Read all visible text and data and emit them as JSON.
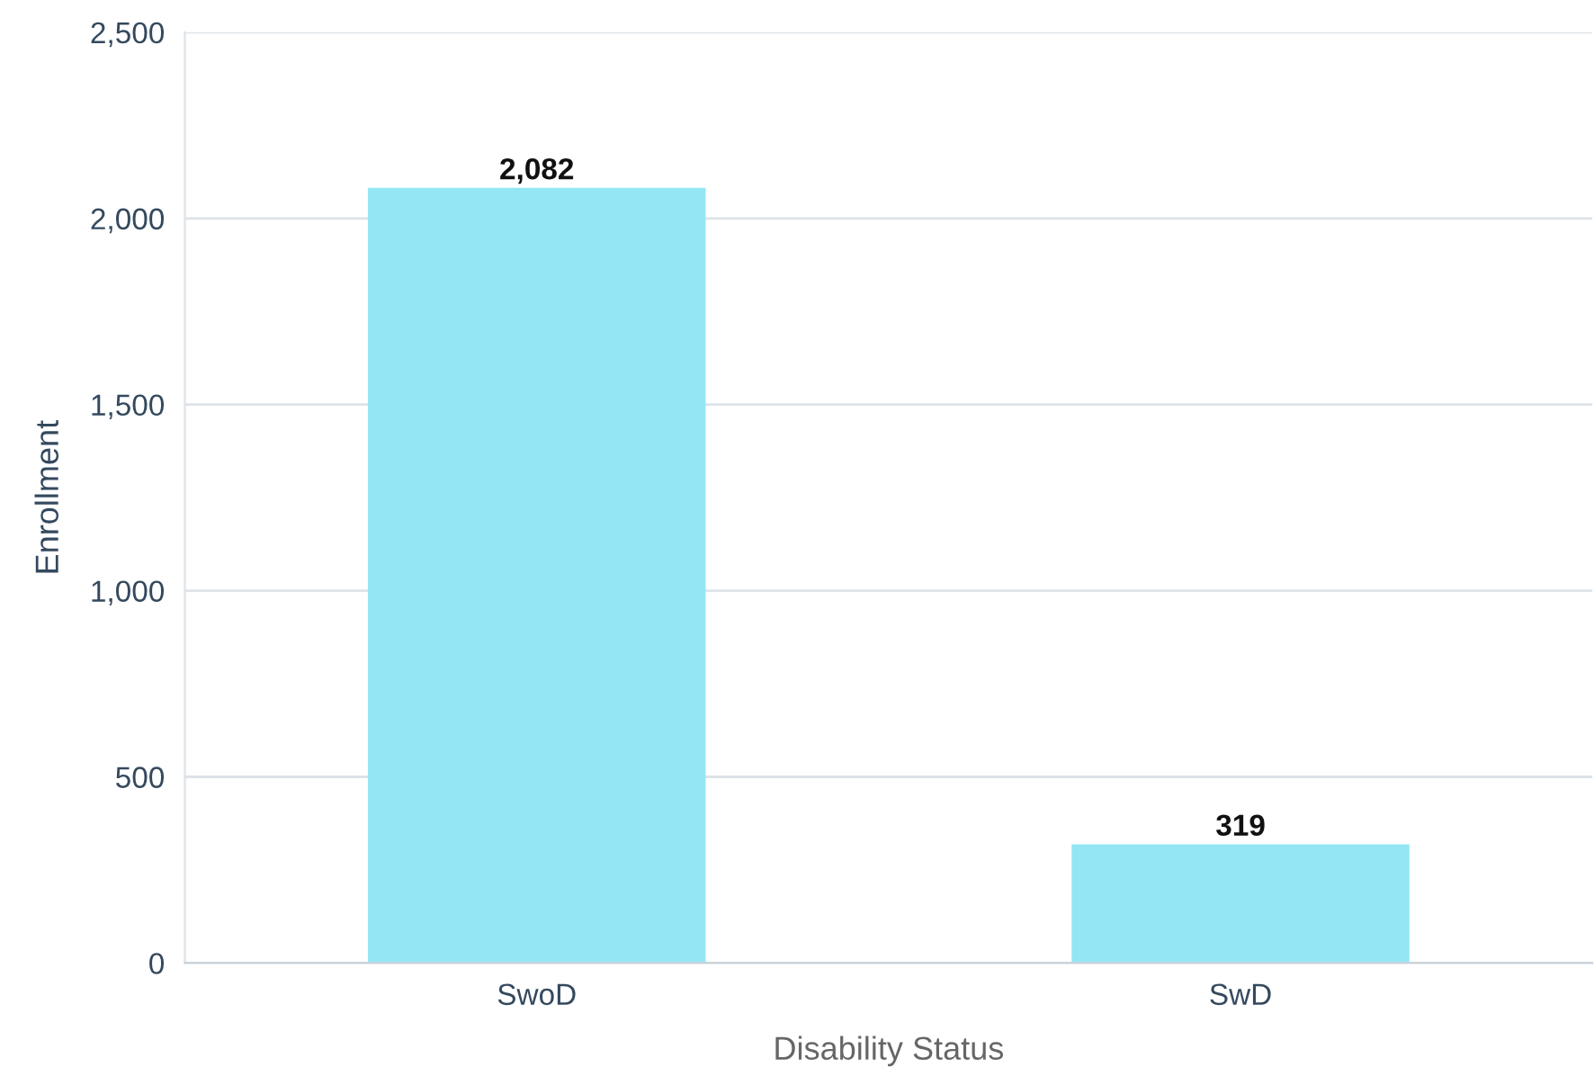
{
  "chart_data": {
    "type": "bar",
    "xlabel": "Disability Status",
    "ylabel": "Enrollment",
    "categories": [
      "SwoD",
      "SwD"
    ],
    "values": [
      2082,
      319
    ],
    "color": "#95e6f5",
    "ylim": [
      0,
      2500
    ],
    "yticks": [
      0,
      {
        "value": 500,
        "label": "500"
      },
      {
        "value": 1000,
        "label": "1,000"
      },
      {
        "value": 1500,
        "label": "1,500"
      },
      {
        "value": 2000,
        "label": "2,000"
      },
      {
        "value": 2500,
        "label": "2,500"
      }
    ],
    "grid": "y",
    "data_labels": true,
    "value_labels": [
      "2,082",
      "319"
    ]
  }
}
